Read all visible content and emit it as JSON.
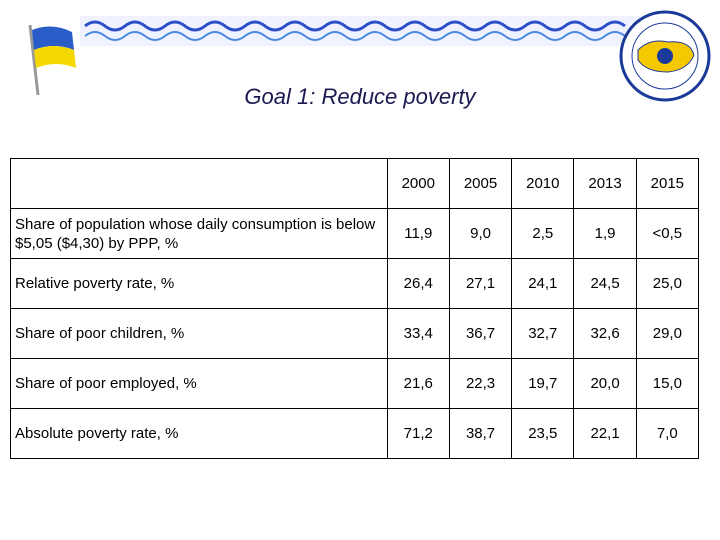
{
  "header": {
    "title": "Goal 1: Reduce poverty"
  },
  "table": {
    "columns": [
      "2000",
      "2005",
      "2010",
      "2013",
      "2015"
    ],
    "rows": [
      {
        "label": "Share of population whose daily consumption is below $5,05 ($4,30) by PPP, %",
        "values": [
          "11,9",
          "9,0",
          "2,5",
          "1,9",
          "<0,5"
        ]
      },
      {
        "label": "Relative poverty rate, %",
        "values": [
          "26,4",
          "27,1",
          "24,1",
          "24,5",
          "25,0"
        ]
      },
      {
        "label": "Share of poor children, %",
        "values": [
          "33,4",
          "36,7",
          "32,7",
          "32,6",
          "29,0"
        ]
      },
      {
        "label": "Share of poor employed, %",
        "values": [
          "21,6",
          "22,3",
          "19,7",
          "20,0",
          "15,0"
        ]
      },
      {
        "label": "Absolute poverty rate, %",
        "values": [
          "71,2",
          "38,7",
          "23,5",
          "22,1",
          "7,0"
        ]
      }
    ]
  }
}
